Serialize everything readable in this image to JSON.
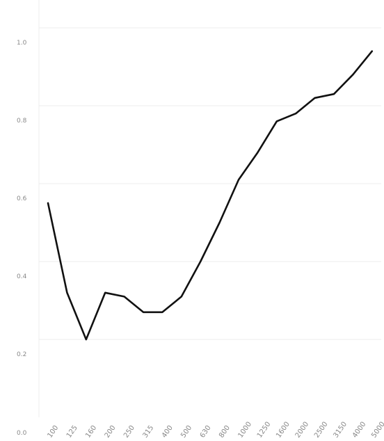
{
  "chart_data": {
    "type": "line",
    "categories": [
      "100",
      "125",
      "160",
      "200",
      "250",
      "315",
      "400",
      "500",
      "630",
      "800",
      "1000",
      "1250",
      "1600",
      "2000",
      "2500",
      "3150",
      "4000",
      "5000"
    ],
    "series": [
      {
        "values": [
          0.55,
          0.32,
          0.2,
          0.32,
          0.31,
          0.27,
          0.27,
          0.31,
          0.4,
          0.5,
          0.61,
          0.68,
          0.76,
          0.78,
          0.82,
          0.83,
          0.88,
          0.94
        ]
      }
    ],
    "y_ticks": [
      "0.0",
      "0.2",
      "0.4",
      "0.6",
      "0.8",
      "1.0"
    ],
    "ylim": [
      0,
      1.0
    ],
    "grid": "horizontal",
    "line_color": "#111111"
  }
}
